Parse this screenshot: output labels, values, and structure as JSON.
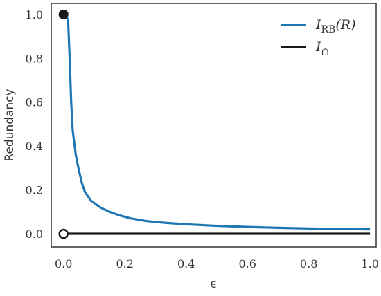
{
  "chart_data": {
    "type": "line",
    "xlabel": "ϵ",
    "ylabel": "Redundancy",
    "xlim": [
      -0.04,
      1.02
    ],
    "ylim": [
      -0.06,
      1.05
    ],
    "xticks": [
      "0.0",
      "0.2",
      "0.4",
      "0.6",
      "0.8",
      "1.0"
    ],
    "yticks": [
      "0.0",
      "0.2",
      "0.4",
      "0.6",
      "0.8",
      "1.0"
    ],
    "grid": false,
    "legend_position": "top-right",
    "series": [
      {
        "name": "I_RB(R)",
        "label_main": "I",
        "label_sub": "RB",
        "label_suffix": "(R)",
        "color": "#1f77b4",
        "x": [
          0.0,
          0.005,
          0.01,
          0.015,
          0.02,
          0.025,
          0.03,
          0.04,
          0.05,
          0.06,
          0.07,
          0.08,
          0.09,
          0.1,
          0.12,
          0.15,
          0.18,
          0.22,
          0.27,
          0.33,
          0.4,
          0.5,
          0.6,
          0.7,
          0.8,
          0.9,
          1.0
        ],
        "y": [
          1.0,
          1.0,
          0.99,
          0.97,
          0.8,
          0.6,
          0.47,
          0.36,
          0.29,
          0.23,
          0.19,
          0.17,
          0.15,
          0.14,
          0.12,
          0.1,
          0.085,
          0.07,
          0.058,
          0.05,
          0.043,
          0.036,
          0.031,
          0.027,
          0.024,
          0.022,
          0.02
        ]
      },
      {
        "name": "I_∩",
        "label_main": "I",
        "label_sub": "∩",
        "label_suffix": "",
        "color": "#1a1a1a",
        "x": [
          0.0,
          1.0
        ],
        "y": [
          0.0,
          0.0
        ]
      }
    ],
    "markers": [
      {
        "x": 0.0,
        "y": 1.0,
        "style": "filled",
        "color": "#1a1a1a"
      },
      {
        "x": 0.0,
        "y": 0.0,
        "style": "open",
        "color": "#1a1a1a"
      }
    ]
  }
}
